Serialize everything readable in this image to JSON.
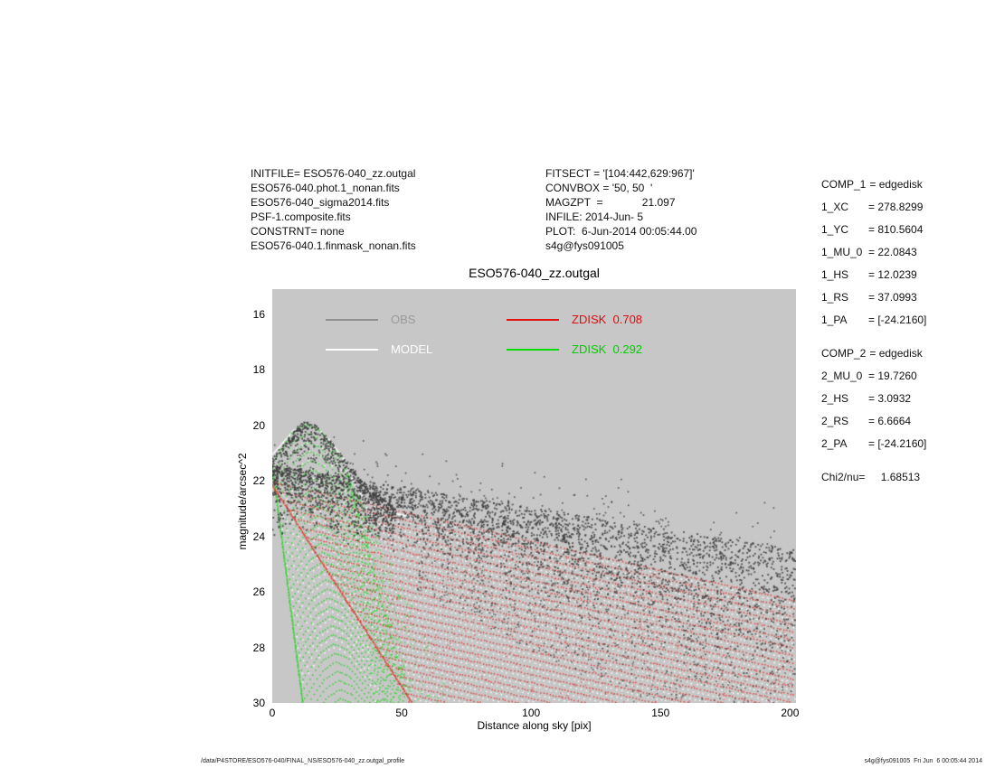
{
  "header": {
    "left_lines": [
      "INITFILE= ESO576-040_zz.outgal",
      "ESO576-040.phot.1_nonan.fits",
      "ESO576-040_sigma2014.fits",
      "PSF-1.composite.fits",
      "CONSTRNT= none",
      "ESO576-040.1.finmask_nonan.fits"
    ],
    "mid_lines": [
      "FITSECT = '[104:442,629:967]'",
      "CONVBOX = '50, 50  '",
      "MAGZPT  =             21.097",
      "INFILE: 2014-Jun- 5",
      "PLOT:  6-Jun-2014 00:05:44.00",
      "s4g@fys091005"
    ]
  },
  "params_panel": {
    "groups": [
      {
        "rows": [
          [
            "COMP_1",
            "= edgedisk"
          ],
          [
            "1_XC",
            "= 278.8299"
          ],
          [
            "1_YC",
            "= 810.5604"
          ],
          [
            "1_MU_0",
            "= 22.0843"
          ],
          [
            "1_HS",
            "= 12.0239"
          ],
          [
            "1_RS",
            "= 37.0993"
          ],
          [
            "1_PA",
            "= [-24.2160]"
          ]
        ]
      },
      {
        "rows": [
          [
            "COMP_2",
            "= edgedisk"
          ],
          [
            "2_MU_0",
            "= 19.7260"
          ],
          [
            "2_HS",
            "= 3.0932"
          ],
          [
            "2_RS",
            "= 6.6664"
          ],
          [
            "2_PA",
            "= [-24.2160]"
          ]
        ]
      },
      {
        "rows": [
          [
            "Chi2/nu=",
            "    1.68513"
          ]
        ]
      }
    ]
  },
  "chart_data": {
    "type": "scatter",
    "title": "ESO576-040_zz.outgal",
    "xlabel": "Distance along sky [pix]",
    "ylabel": "magnitude/arcsec^2",
    "xlim": [
      0,
      202.3
    ],
    "ylim": [
      30,
      15.09
    ],
    "y_inverted": true,
    "xticks": [
      0,
      50,
      100,
      150,
      200
    ],
    "yticks": [
      16,
      18,
      20,
      22,
      24,
      26,
      28,
      30
    ],
    "background": "#c7c7c7",
    "grid": false,
    "legend_position": "top-inside",
    "legend": [
      {
        "label": "OBS",
        "color": "#8f8f8f",
        "text_color": "#9a9a9a"
      },
      {
        "label": "MODEL",
        "color": "#ffffff",
        "text_color": "#ffffff"
      },
      {
        "label": "ZDISK  0.708",
        "color": "#e01010",
        "text_color": "#dd0c0c"
      },
      {
        "label": "ZDISK  0.292",
        "color": "#00dd00",
        "text_color": "#00cc00"
      }
    ],
    "seed": 1337,
    "series": [
      {
        "name": "OBS",
        "kind": "observed-scatter",
        "color": "#3f3f3f",
        "bump_top_envelope": [
          [
            0,
            21.2
          ],
          [
            5,
            20.6
          ],
          [
            10,
            20.0
          ],
          [
            13,
            19.85
          ],
          [
            17,
            20.0
          ],
          [
            22,
            20.5
          ],
          [
            27,
            21.1
          ],
          [
            33,
            21.8
          ],
          [
            40,
            22.45
          ],
          [
            47,
            22.95
          ]
        ],
        "band_top": {
          "mu0": 21.45,
          "slope": 0.015
        },
        "band_spread": {
          "s0": 0.55,
          "s1": 0.0088
        },
        "counts": {
          "bump": 500,
          "bump_edge": 260,
          "band": 2900,
          "deep_tail": 900,
          "outliers": 130
        }
      },
      {
        "name": "MODEL",
        "kind": "model-rows",
        "color": "#ffffff",
        "rows": 25,
        "row_dmu": 0.33,
        "green_row_dx": 0.45,
        "red_row_dx": 2.2,
        "mu_offset": 0.12,
        "step": 2.0
      },
      {
        "name": "ZDISK 0.708",
        "kind": "component-fan",
        "color": "#e2302a",
        "fraction": 0.708,
        "ridge": {
          "mu0": 22.05,
          "slope": 0.0212
        },
        "rows": 25,
        "row_dmu": 0.33,
        "row_dx": 2.2,
        "caustic": {
          "mu0": 22.15,
          "slope": 0.1454
        },
        "extra_scatter": 500
      },
      {
        "name": "ZDISK 0.292",
        "kind": "component-fan",
        "color": "#2ad42a",
        "fraction": 0.292,
        "ridge_points": [
          [
            0,
            21.4
          ],
          [
            4,
            20.8
          ],
          [
            8,
            20.25
          ],
          [
            13,
            19.95
          ],
          [
            18,
            20.15
          ],
          [
            23,
            20.7
          ],
          [
            28,
            21.45
          ]
        ],
        "ridge_tail": {
          "x0": 28,
          "mu0": 21.45,
          "slope": 0.344
        },
        "rows": 33,
        "row_dmu": 0.33,
        "row_dx": 0.45,
        "left_caustic": {
          "mu0": 21.4,
          "slope": 0.729
        },
        "wing": {
          "count": 380,
          "apex_x": 28,
          "apex_mu": 21.5,
          "x_reach_near": 25,
          "x_reach_far": 45,
          "dmu": 8.5
        }
      }
    ]
  },
  "footer": {
    "left": "/data/P4STORE/ESO576-040/FINAL_NS/ESO576-040_zz.outgal_profile",
    "right": "s4g@fys091005  Fri Jun  6 00:05:44 2014"
  }
}
